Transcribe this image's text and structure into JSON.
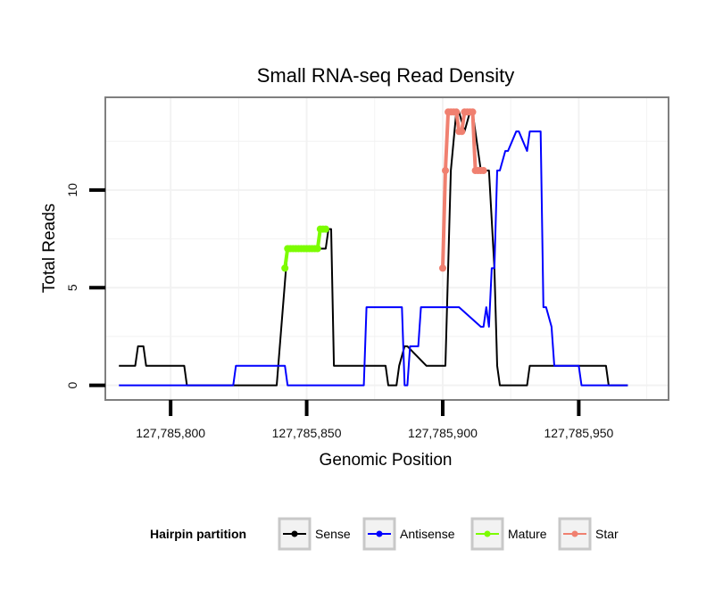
{
  "chart_data": {
    "type": "line",
    "title": "Small RNA-seq Read Density",
    "xlabel": "Genomic Position",
    "ylabel": "Total Reads",
    "xlim": [
      127785776,
      127785983
    ],
    "ylim": [
      -0.75,
      14.75
    ],
    "x_ticks": [
      127785800,
      127785850,
      127785900,
      127785950
    ],
    "x_tick_labels": [
      "127,785,800",
      "127,785,850",
      "127,785,900",
      "127,785,950"
    ],
    "y_ticks": [
      0,
      5,
      10
    ],
    "y_tick_labels": [
      "0",
      "5",
      "10"
    ],
    "grid": true,
    "legend": {
      "title": "Hairpin partition",
      "position": "bottom",
      "entries": [
        {
          "name": "Sense",
          "color": "#000000"
        },
        {
          "name": "Antisense",
          "color": "#0000ff"
        },
        {
          "name": "Mature",
          "color": "#7cfc00"
        },
        {
          "name": "Star",
          "color": "#f08070"
        }
      ]
    },
    "series": [
      {
        "name": "Sense",
        "color": "#000000",
        "x": [
          127785781,
          127785787,
          127785788,
          127785790,
          127785791,
          127785805,
          127785806,
          127785839,
          127785843,
          127785844,
          127785857,
          127785858,
          127785859,
          127785860,
          127785879,
          127785880,
          127785883,
          127785884,
          127785886,
          127785887,
          127785894,
          127785895,
          127785901,
          127785903,
          127785905,
          127785906,
          127785908,
          127785910,
          127785911,
          127785914,
          127785915,
          127785917,
          127785919,
          127785920,
          127785921,
          127785927,
          127785931,
          127785932,
          127785946,
          127785947,
          127785960,
          127785961,
          127785968
        ],
        "values": [
          1,
          1,
          2,
          2,
          1,
          1,
          0,
          0,
          7,
          7,
          7,
          8,
          8,
          1,
          1,
          0,
          0,
          1,
          2,
          2,
          1,
          1,
          1,
          11,
          14,
          14,
          13,
          14,
          14,
          11,
          11,
          11,
          6,
          1,
          0,
          0,
          0,
          1,
          1,
          1,
          1,
          0,
          0
        ]
      },
      {
        "name": "Antisense",
        "color": "#0000ff",
        "x": [
          127785781,
          127785805,
          127785806,
          127785823,
          127785824,
          127785842,
          127785843,
          127785871,
          127785872,
          127785879,
          127785880,
          127785885,
          127785886,
          127785887,
          127785888,
          127785891,
          127785892,
          127785905,
          127785906,
          127785914,
          127785915,
          127785916,
          127785917,
          127785918,
          127785919,
          127785920,
          127785921,
          127785923,
          127785924,
          127785927,
          127785928,
          127785931,
          127785932,
          127785935,
          127785936,
          127785937,
          127785938,
          127785940,
          127785941,
          127785942,
          127785947,
          127785948,
          127785950,
          127785951,
          127785952,
          127785968
        ],
        "values": [
          0,
          0,
          0,
          0,
          1,
          1,
          0,
          0,
          4,
          4,
          4,
          4,
          0,
          0,
          2,
          2,
          4,
          4,
          4,
          3,
          3,
          4,
          3,
          6,
          6,
          11,
          11,
          12,
          12,
          13,
          13,
          12,
          13,
          13,
          13,
          4,
          4,
          3,
          1,
          1,
          1,
          1,
          1,
          0,
          0,
          0
        ]
      },
      {
        "name": "Mature",
        "color": "#7cfc00",
        "x": [
          127785842,
          127785843,
          127785844,
          127785845,
          127785846,
          127785847,
          127785848,
          127785849,
          127785850,
          127785851,
          127785852,
          127785853,
          127785854,
          127785855,
          127785856,
          127785857
        ],
        "values": [
          6,
          7,
          7,
          7,
          7,
          7,
          7,
          7,
          7,
          7,
          7,
          7,
          7,
          8,
          8,
          8
        ]
      },
      {
        "name": "Star",
        "color": "#f08070",
        "x": [
          127785900,
          127785901,
          127785902,
          127785903,
          127785904,
          127785905,
          127785906,
          127785907,
          127785908,
          127785909,
          127785910,
          127785911,
          127785912,
          127785913,
          127785914,
          127785915
        ],
        "values": [
          6,
          11,
          14,
          14,
          14,
          14,
          13,
          13,
          14,
          14,
          14,
          14,
          11,
          11,
          11,
          11
        ]
      }
    ]
  }
}
